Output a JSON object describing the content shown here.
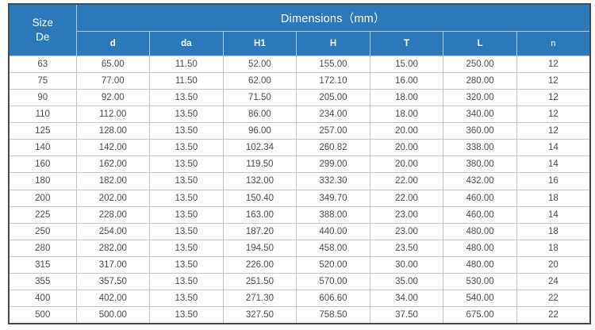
{
  "chart_data": {
    "type": "table",
    "title": "Dimensions（mm）",
    "corner_header": {
      "line1": "Size",
      "line2": "De"
    },
    "columns": [
      "d",
      "da",
      "H1",
      "H",
      "T",
      "L",
      "n"
    ],
    "size_column_label": "Size De",
    "rows": [
      [
        "63",
        "65.00",
        "11.50",
        "52.00",
        "155.00",
        "15.00",
        "250.00",
        "12"
      ],
      [
        "75",
        "77.00",
        "11.50",
        "62.00",
        "172.10",
        "16.00",
        "280.00",
        "12"
      ],
      [
        "90",
        "92.00",
        "13.50",
        "71.50",
        "205.00",
        "18.00",
        "320.00",
        "12"
      ],
      [
        "110",
        "112.00",
        "13.50",
        "86.00",
        "234.00",
        "18.00",
        "340.00",
        "12"
      ],
      [
        "125",
        "128.00",
        "13.50",
        "96.00",
        "257.00",
        "20.00",
        "360.00",
        "12"
      ],
      [
        "140",
        "142.00",
        "13.50",
        "102.34",
        "260.82",
        "20.00",
        "338.00",
        "14"
      ],
      [
        "160",
        "162.00",
        "13.50",
        "119.50",
        "299.00",
        "20.00",
        "380.00",
        "14"
      ],
      [
        "180",
        "182.00",
        "13.50",
        "132.00",
        "332.30",
        "22.00",
        "432.00",
        "16"
      ],
      [
        "200",
        "202.00",
        "13.50",
        "150.40",
        "349.70",
        "22.00",
        "460.00",
        "18"
      ],
      [
        "225",
        "228.00",
        "13.50",
        "163.00",
        "388.00",
        "23.00",
        "460.00",
        "14"
      ],
      [
        "250",
        "254.00",
        "13.50",
        "187.20",
        "440.00",
        "23.00",
        "480.00",
        "18"
      ],
      [
        "280",
        "282.00",
        "13.50",
        "194.50",
        "458.00",
        "23.50",
        "480.00",
        "18"
      ],
      [
        "315",
        "317.00",
        "13.50",
        "226.00",
        "520.00",
        "30.00",
        "480.00",
        "20"
      ],
      [
        "355",
        "357.50",
        "13.50",
        "251.50",
        "570.00",
        "35.00",
        "530.00",
        "24"
      ],
      [
        "400",
        "402.00",
        "13.50",
        "271.30",
        "606.60",
        "34.00",
        "540.00",
        "22"
      ],
      [
        "500",
        "500.00",
        "13.50",
        "327.50",
        "758.50",
        "37.50",
        "675.00",
        "22"
      ]
    ],
    "layout": {
      "grid": true,
      "header_rows": 2,
      "data_rows": 16
    }
  },
  "colors": {
    "header_bg": "#2b79ba",
    "header_divider": "#aecbe6",
    "header_text": "#ffffff",
    "body_text": "#4d4d4d",
    "body_border": "#c7c7c7",
    "outer_border": "#4a4a4a",
    "body_bg": "#ffffff"
  }
}
